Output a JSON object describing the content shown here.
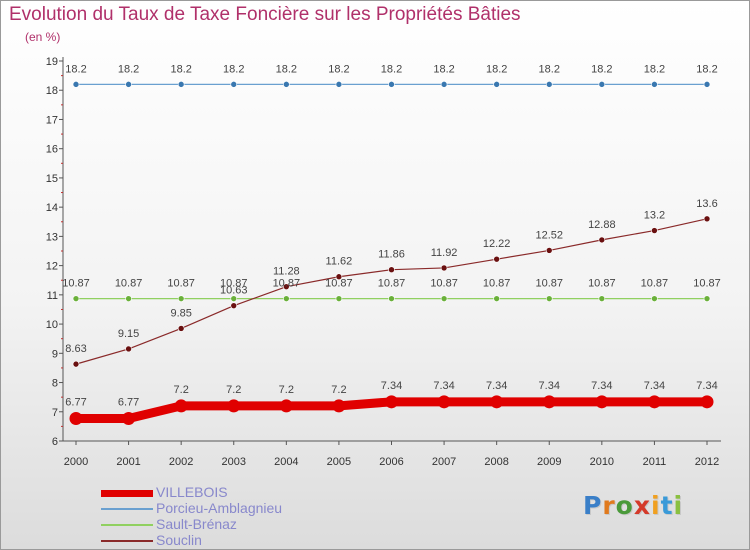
{
  "title": "Evolution du Taux de Taxe Foncière sur les Propriétés Bâties",
  "unit_label": "(en %)",
  "logo": {
    "text": "Proxiti",
    "letter_colors": [
      "#3a7fc8",
      "#e07a1e",
      "#4a9a3a",
      "#d43a2a",
      "#f0a020",
      "#3a9ad8",
      "#8ac040"
    ]
  },
  "colors": {
    "title": "#b0306a",
    "legend_text": "#8888cc",
    "axis": "#555555",
    "label": "#444444"
  },
  "chart_data": {
    "type": "line",
    "title": "Evolution du Taux de Taxe Foncière sur les Propriétés Bâties",
    "ylabel": "(en %)",
    "xlabel": "",
    "x": [
      "2000",
      "2001",
      "2002",
      "2003",
      "2004",
      "2005",
      "2006",
      "2007",
      "2008",
      "2009",
      "2010",
      "2011",
      "2012"
    ],
    "ylim": [
      6,
      19
    ],
    "yticks": [
      6,
      7,
      8,
      9,
      10,
      11,
      12,
      13,
      14,
      15,
      16,
      17,
      18,
      19
    ],
    "grid": false,
    "legend_position": "bottom-left",
    "series": [
      {
        "name": "VILLEBOIS",
        "color": "#e00000",
        "values": [
          6.77,
          6.77,
          7.2,
          7.2,
          7.2,
          7.2,
          7.34,
          7.34,
          7.34,
          7.34,
          7.34,
          7.34,
          7.34
        ],
        "labels": [
          "6.77",
          "6.77",
          "7.2",
          "7.2",
          "7.2",
          "7.2",
          "7.34",
          "7.34",
          "7.34",
          "7.34",
          "7.34",
          "7.34",
          "7.34"
        ]
      },
      {
        "name": "Porcieu-Amblagnieu",
        "color": "#6aa0d0",
        "marker_color": "#3a78b0",
        "values": [
          18.2,
          18.2,
          18.2,
          18.2,
          18.2,
          18.2,
          18.2,
          18.2,
          18.2,
          18.2,
          18.2,
          18.2,
          18.2
        ],
        "labels": [
          "18.2",
          "18.2",
          "18.2",
          "18.2",
          "18.2",
          "18.2",
          "18.2",
          "18.2",
          "18.2",
          "18.2",
          "18.2",
          "18.2",
          "18.2"
        ]
      },
      {
        "name": "Sault-Brénaz",
        "color": "#90d060",
        "marker_color": "#6ab03a",
        "values": [
          10.87,
          10.87,
          10.87,
          10.87,
          10.87,
          10.87,
          10.87,
          10.87,
          10.87,
          10.87,
          10.87,
          10.87,
          10.87
        ],
        "labels": [
          "10.87",
          "10.87",
          "10.87",
          "10.87",
          "10.87",
          "10.87",
          "10.87",
          "10.87",
          "10.87",
          "10.87",
          "10.87",
          "10.87",
          "10.87"
        ]
      },
      {
        "name": "Souclin",
        "color": "#8a2a2a",
        "marker_color": "#6a1010",
        "values": [
          8.63,
          9.15,
          9.85,
          10.63,
          11.28,
          11.62,
          11.86,
          11.92,
          12.22,
          12.52,
          12.88,
          13.2,
          13.6
        ],
        "labels": [
          "8.63",
          "9.15",
          "9.85",
          "10.63",
          "11.28",
          "11.62",
          "11.86",
          "11.92",
          "12.22",
          "12.52",
          "12.88",
          "13.2",
          "13.6"
        ]
      }
    ]
  }
}
